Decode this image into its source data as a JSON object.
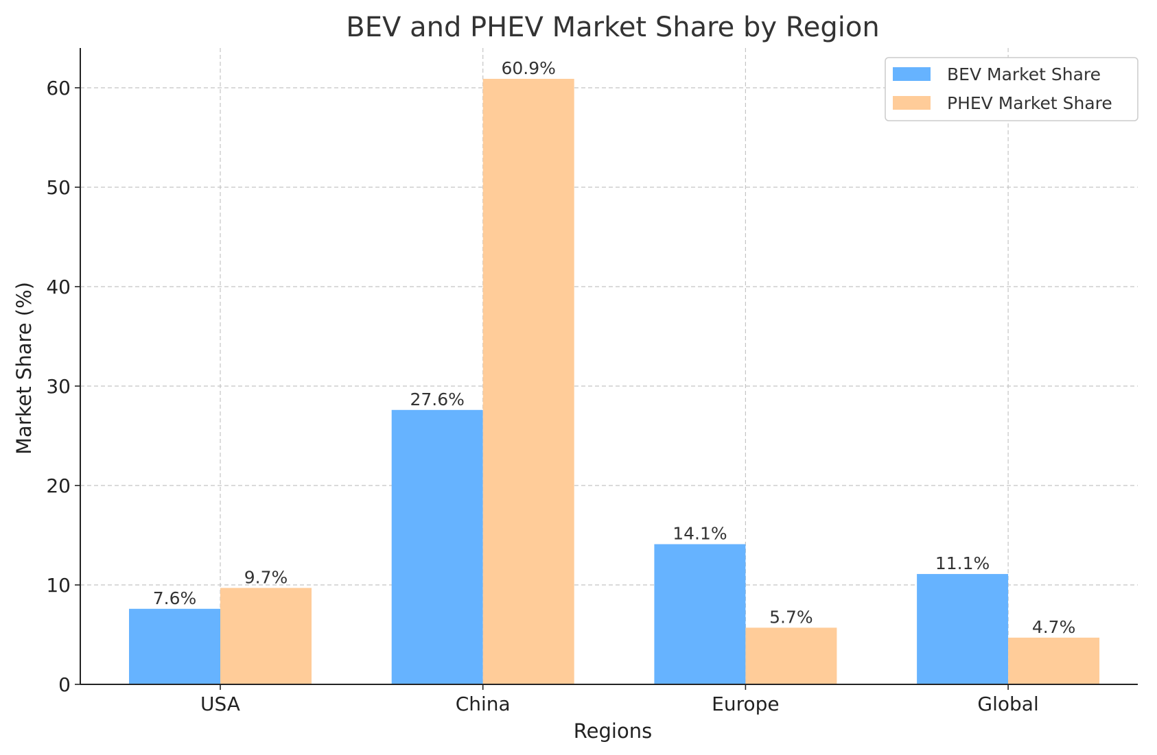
{
  "chart_data": {
    "type": "bar",
    "title": "BEV and PHEV Market Share by Region",
    "xlabel": "Regions",
    "ylabel": "Market Share (%)",
    "categories": [
      "USA",
      "China",
      "Europe",
      "Global"
    ],
    "series": [
      {
        "name": "BEV Market Share",
        "color": "#66b3ff",
        "values": [
          7.6,
          27.6,
          14.1,
          11.1
        ],
        "labels": [
          "7.6%",
          "27.6%",
          "14.1%",
          "11.1%"
        ]
      },
      {
        "name": "PHEV Market Share",
        "color": "#ffcc99",
        "values": [
          9.7,
          60.9,
          5.7,
          4.7
        ],
        "labels": [
          "9.7%",
          "60.9%",
          "5.7%",
          "4.7%"
        ]
      }
    ],
    "ylim": [
      0,
      64
    ],
    "yticks": [
      0,
      10,
      20,
      30,
      40,
      50,
      60
    ],
    "grid": true,
    "legend_position": "top-right"
  }
}
